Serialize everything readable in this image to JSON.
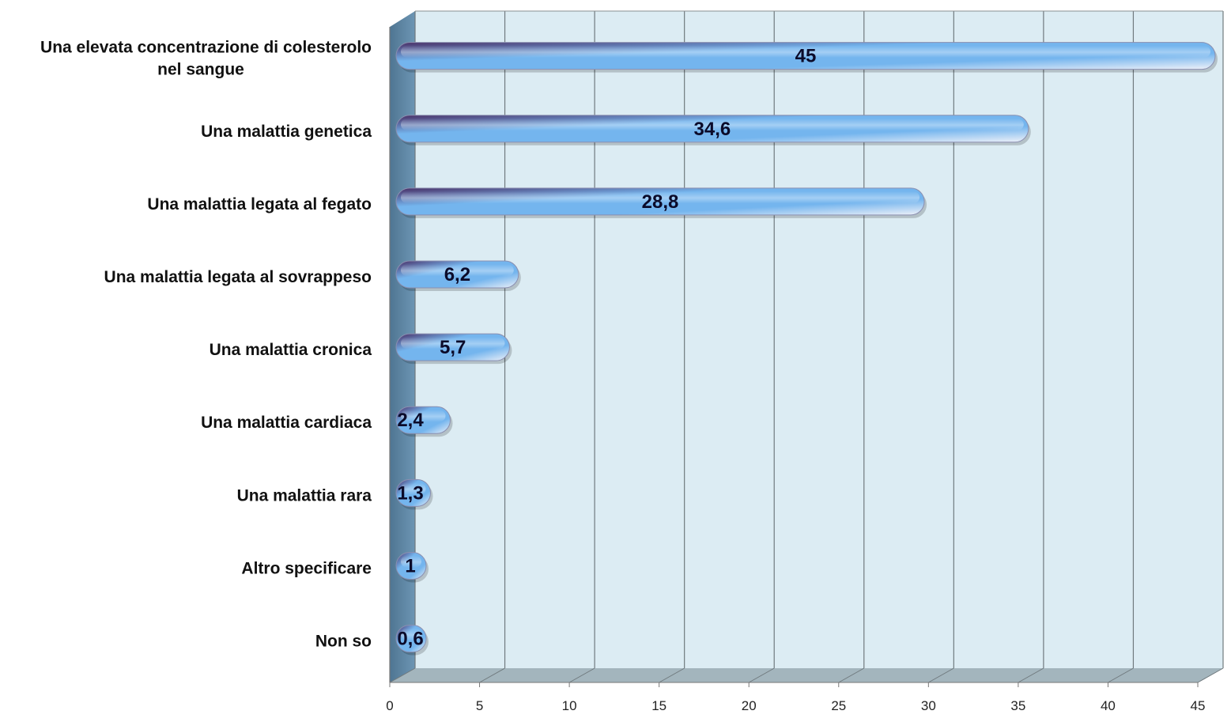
{
  "chart_data": {
    "type": "bar",
    "orientation": "horizontal",
    "title": "",
    "xlabel": "",
    "ylabel": "",
    "categories": [
      [
        "Una elevata concentrazione di colesterolo",
        "nel sangue"
      ],
      [
        "Una malattia genetica"
      ],
      [
        "Una malattia legata al fegato"
      ],
      [
        "Una malattia legata al sovrappeso"
      ],
      [
        "Una malattia cronica"
      ],
      [
        "Una malattia cardiaca"
      ],
      [
        "Una malattia rara"
      ],
      [
        "Altro specificare"
      ],
      [
        "Non so"
      ]
    ],
    "values": [
      45,
      34.6,
      28.8,
      6.2,
      5.7,
      2.4,
      1.3,
      1,
      0.6
    ],
    "data_labels": [
      "45",
      "34,6",
      "28,8",
      "6,2",
      "5,7",
      "2,4",
      "1,3",
      "1",
      "0,6"
    ],
    "xlim": [
      0,
      45
    ],
    "x_ticks": [
      0,
      5,
      10,
      15,
      20,
      25,
      30,
      35,
      40,
      45
    ],
    "grid": true,
    "legend": "none",
    "colors": {
      "plot_background": "#dcecf3",
      "side_wall": "#5e87a6",
      "floor": "#a3b5bd",
      "gridline": "#707a7e",
      "bar_dark": "#4a2f66",
      "bar_mid": "#74b5ee",
      "bar_light": "#eef1f8"
    }
  }
}
